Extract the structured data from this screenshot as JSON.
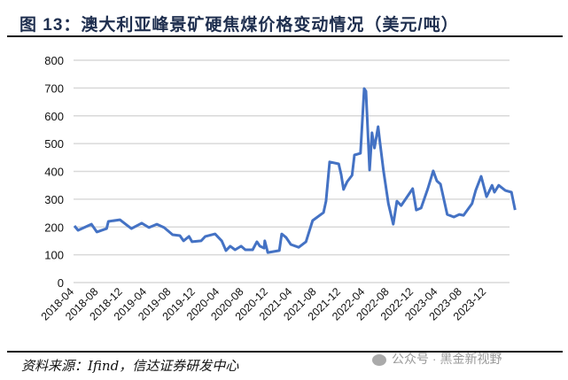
{
  "title": "图 13：澳大利亚峰景矿硬焦煤价格变动情况（美元/吨）",
  "source": "资料来源：Ifind，信达证券研发中心",
  "watermark": "公众号 · 黑金新视野",
  "chart_data": {
    "type": "line",
    "title": "澳大利亚峰景矿硬焦煤价格变动情况（美元/吨）",
    "xlabel": "",
    "ylabel": "",
    "x_start": "2018-04",
    "ylim": [
      0,
      800
    ],
    "yticks": [
      0,
      100,
      200,
      300,
      400,
      500,
      600,
      700,
      800
    ],
    "xticks": [
      "2018-04",
      "2018-08",
      "2018-12",
      "2019-04",
      "2019-08",
      "2019-12",
      "2020-04",
      "2020-08",
      "2020-12",
      "2021-04",
      "2021-08",
      "2021-12",
      "2022-04",
      "2022-08",
      "2022-12",
      "2023-04",
      "2023-08",
      "2023-12"
    ],
    "grid": true,
    "legend": "none",
    "color": "#4472c4",
    "series": [
      {
        "name": "峰景矿硬焦煤价格",
        "x": [
          0,
          0.6,
          2.8,
          3.7,
          5.3,
          5.6,
          7.5,
          9.4,
          11.1,
          12.3,
          13.6,
          14.8,
          16.2,
          17.4,
          18,
          18.9,
          19.4,
          20.9,
          21.6,
          23.2,
          24.3,
          25,
          25.7,
          26.5,
          27.5,
          28.2,
          29.4,
          30.1,
          30.6,
          31.3,
          31.4,
          31.9,
          33.8,
          34.2,
          34.9,
          35.7,
          37,
          38.2,
          39.3,
          41.1,
          41.5,
          42.1,
          43.6,
          44,
          44.4,
          45,
          45.8,
          46.2,
          47.2,
          47.8,
          48.1,
          48.7,
          49.1,
          49.5,
          50.1,
          50.4,
          51,
          51.8,
          52.6,
          53.2,
          53.9,
          55.8,
          56.4,
          57.2,
          58.3,
          59.2,
          59.8,
          60.4,
          61.5,
          62.6,
          63.5,
          64.2,
          65.6,
          66.2,
          67.1,
          68,
          68.9,
          69.3,
          70,
          71.1,
          72.1,
          72.7
        ],
        "values": [
          204,
          188,
          210,
          182,
          194,
          220,
          226,
          194,
          214,
          198,
          210,
          198,
          172,
          169,
          150,
          166,
          147,
          150,
          166,
          175,
          150,
          115,
          131,
          118,
          131,
          118,
          118,
          147,
          131,
          124,
          150,
          108,
          115,
          175,
          163,
          137,
          127,
          147,
          223,
          252,
          293,
          434,
          427,
          389,
          335,
          363,
          386,
          459,
          465,
          698,
          688,
          405,
          539,
          484,
          561,
          507,
          402,
          284,
          210,
          293,
          277,
          338,
          261,
          268,
          338,
          402,
          366,
          354,
          245,
          236,
          245,
          242,
          284,
          331,
          382,
          309,
          350,
          325,
          350,
          331,
          325,
          261
        ]
      }
    ]
  }
}
